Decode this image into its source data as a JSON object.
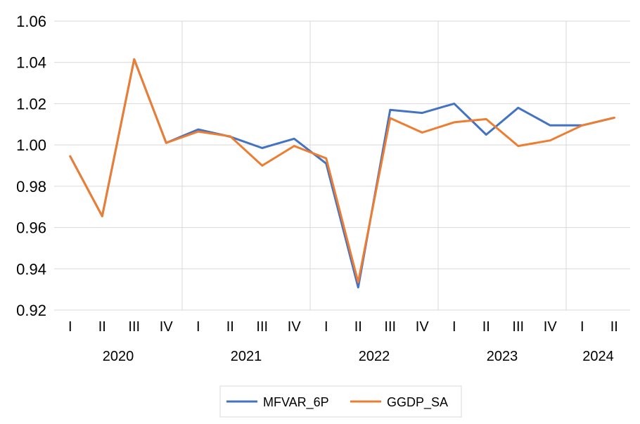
{
  "chart_data": {
    "type": "line",
    "title": "",
    "xlabel": "",
    "ylabel": "",
    "ylim": [
      0.92,
      1.06
    ],
    "yticks": [
      "0.92",
      "0.94",
      "0.96",
      "0.98",
      "1.00",
      "1.02",
      "1.04",
      "1.06"
    ],
    "grid": true,
    "legend_position": "bottom",
    "categories": [
      "I",
      "II",
      "III",
      "IV",
      "I",
      "II",
      "III",
      "IV",
      "I",
      "II",
      "III",
      "IV",
      "I",
      "II",
      "III",
      "IV",
      "I",
      "II"
    ],
    "years": [
      {
        "label": "2020",
        "start": 0,
        "end": 3
      },
      {
        "label": "2021",
        "start": 4,
        "end": 7
      },
      {
        "label": "2022",
        "start": 8,
        "end": 11
      },
      {
        "label": "2023",
        "start": 12,
        "end": 15
      },
      {
        "label": "2024",
        "start": 16,
        "end": 17
      }
    ],
    "series": [
      {
        "name": "MFVAR_6P",
        "color": "#4472c4",
        "values": [
          0.9945,
          0.9655,
          1.0415,
          1.001,
          1.0075,
          1.004,
          0.9985,
          1.003,
          0.991,
          0.931,
          1.017,
          1.0155,
          1.02,
          1.005,
          1.018,
          1.0095,
          1.0095,
          1.0132
        ]
      },
      {
        "name": "GGDP_SA",
        "color": "#ed7d31",
        "values": [
          0.9945,
          0.9655,
          1.0415,
          1.001,
          1.0065,
          1.0042,
          0.99,
          0.9995,
          0.9935,
          0.9335,
          1.013,
          1.006,
          1.011,
          1.0125,
          0.9995,
          1.0022,
          1.0095,
          1.0132
        ]
      }
    ]
  }
}
